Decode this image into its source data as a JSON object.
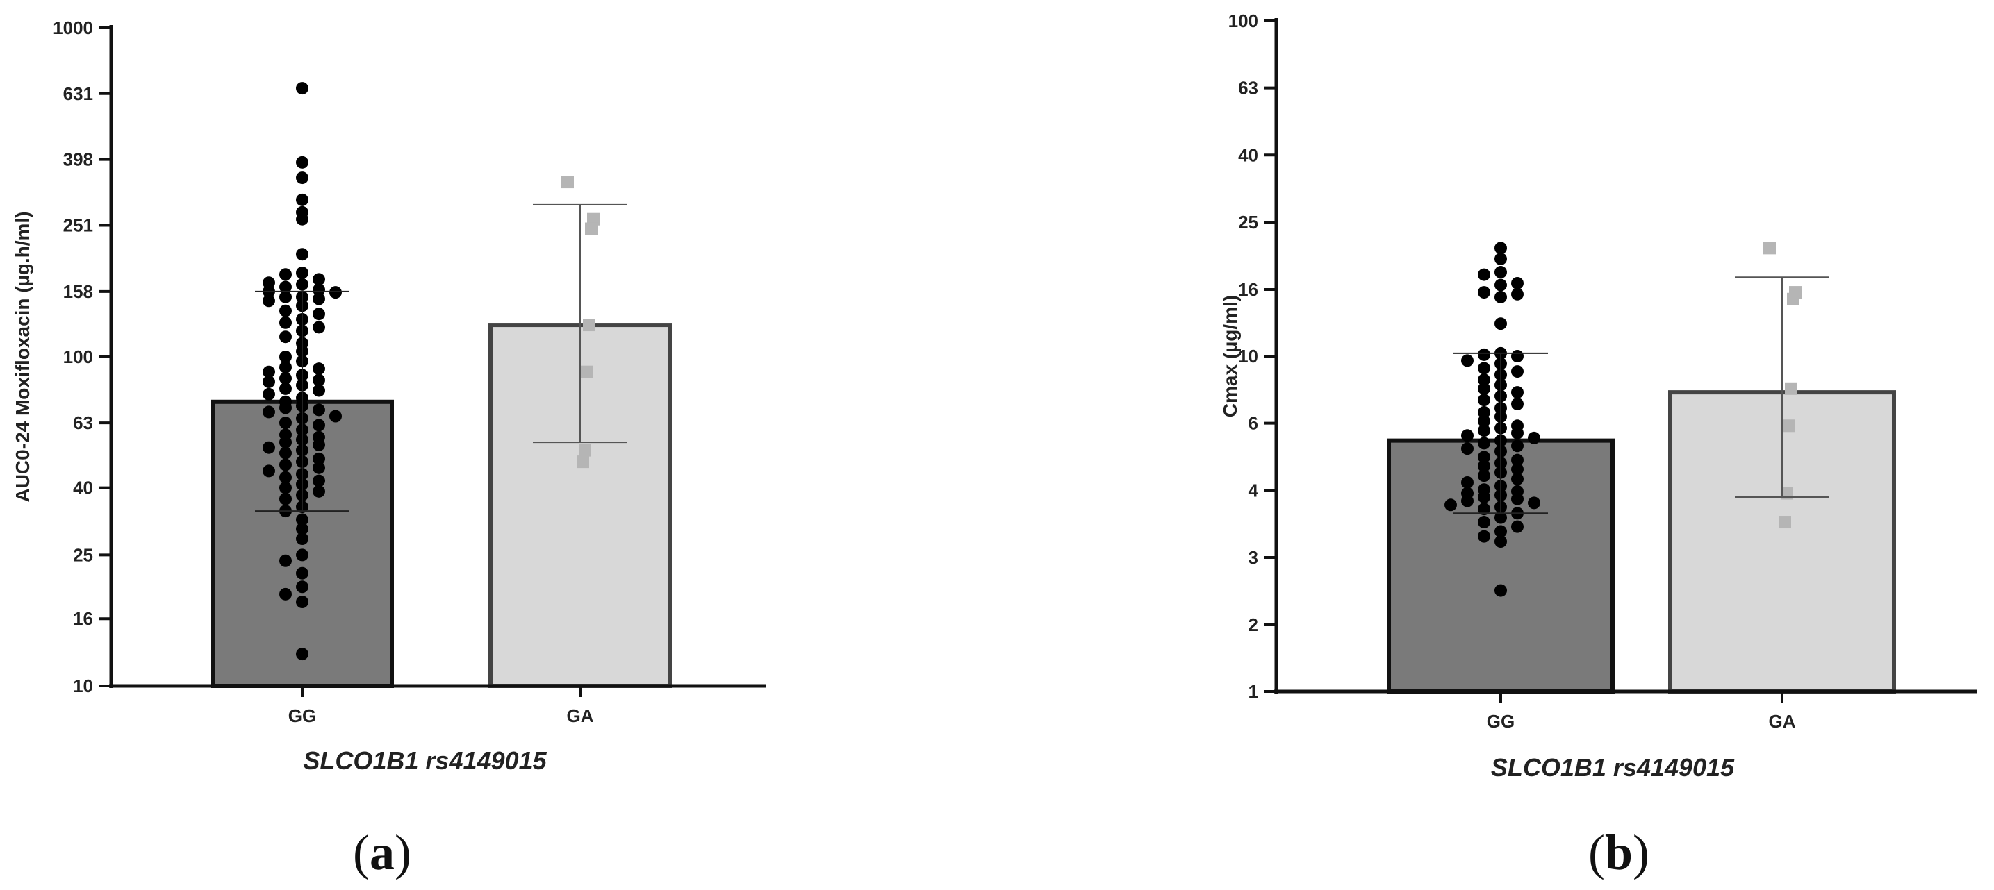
{
  "chart_data": [
    {
      "type": "bar",
      "panel_label": "a",
      "ylabel": "AUC0-24 Moxifloxacin (µg.h/ml)",
      "xlabel": "SLCO1B1 rs4149015",
      "yscale": "log",
      "ylim": [
        10,
        1000
      ],
      "yticks": [
        10,
        16,
        25,
        40,
        63,
        100,
        158,
        251,
        398,
        631,
        1000
      ],
      "ytick_labels": [
        "10",
        "16",
        "25",
        "40",
        "63",
        "100",
        "158",
        "251",
        "398",
        "631",
        "1000"
      ],
      "categories": [
        "GG",
        "GA"
      ],
      "values": [
        73,
        125
      ],
      "error_low": [
        34,
        55
      ],
      "error_high": [
        158,
        290
      ],
      "colors": {
        "GG": "#7a7a7a",
        "GA": "#d8d8d8"
      },
      "points": {
        "GG": [
          655,
          390,
          350,
          300,
          275,
          262,
          205,
          180,
          178,
          172,
          168,
          166,
          163,
          160,
          158,
          157,
          152,
          152,
          150,
          148,
          143,
          138,
          135,
          130,
          127,
          123,
          120,
          115,
          110,
          104,
          100,
          97,
          93,
          92,
          90,
          88,
          86,
          85,
          84,
          82,
          80,
          79,
          77,
          75,
          73,
          71,
          70,
          69,
          68,
          66,
          65,
          63,
          62,
          60,
          58,
          57,
          56,
          55,
          54,
          53,
          52,
          51,
          49,
          48,
          47,
          46,
          45,
          44,
          43,
          42,
          41,
          40,
          39,
          38,
          37,
          35,
          34,
          32,
          30,
          28,
          25,
          24,
          22,
          20,
          19,
          18,
          12.5
        ],
        "GA": [
          340,
          262,
          245,
          125,
          90,
          52,
          48
        ]
      }
    },
    {
      "type": "bar",
      "panel_label": "b",
      "ylabel": "Cmax (µg/ml)",
      "xlabel": "SLCO1B1 rs4149015",
      "yscale": "log",
      "ylim": [
        1,
        100
      ],
      "yticks": [
        1,
        1.58,
        2.51,
        3.98,
        6.31,
        10,
        15.8,
        25.1,
        39.8,
        63.1,
        100
      ],
      "ytick_labels": [
        "1",
        "2",
        "3",
        "4",
        "6",
        "10",
        "16",
        "25",
        "40",
        "63",
        "100"
      ],
      "categories": [
        "GG",
        "GA"
      ],
      "values": [
        5.6,
        7.8
      ],
      "error_low": [
        3.4,
        3.8
      ],
      "error_high": [
        10.2,
        17.2
      ],
      "colors": {
        "GG": "#7a7a7a",
        "GA": "#d8d8d8"
      },
      "points": {
        "GG": [
          21,
          19.5,
          17.8,
          17.5,
          16.5,
          16.3,
          15.5,
          15.3,
          15.0,
          12.5,
          10.2,
          10.1,
          10.0,
          9.7,
          9.5,
          9.2,
          9.0,
          8.8,
          8.5,
          8.2,
          8.0,
          7.8,
          7.6,
          7.4,
          7.2,
          7.0,
          6.8,
          6.6,
          6.4,
          6.2,
          6.1,
          6.0,
          5.9,
          5.8,
          5.7,
          5.6,
          5.5,
          5.4,
          5.3,
          5.2,
          5.0,
          4.9,
          4.8,
          4.7,
          4.6,
          4.5,
          4.4,
          4.3,
          4.2,
          4.1,
          4.0,
          3.95,
          3.9,
          3.85,
          3.8,
          3.75,
          3.7,
          3.65,
          3.6,
          3.55,
          3.5,
          3.4,
          3.3,
          3.2,
          3.1,
          3.0,
          2.9,
          2.8,
          2.0
        ],
        "GA": [
          21,
          15.5,
          14.8,
          8.0,
          6.2,
          3.9,
          3.2
        ]
      }
    }
  ]
}
